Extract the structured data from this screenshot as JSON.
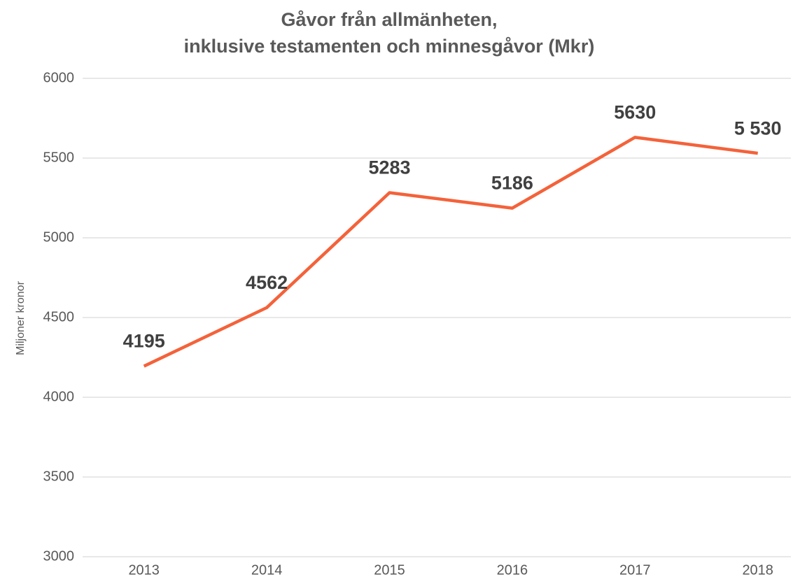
{
  "chart_data": {
    "type": "line",
    "title": [
      "Gåvor från allmänheten,",
      "inklusive testamenten och minnesgåvor (Mkr)"
    ],
    "y_label": "Miljoner kronor",
    "categories": [
      "2013",
      "2014",
      "2015",
      "2016",
      "2017",
      "2018"
    ],
    "values": [
      4195,
      4562,
      5283,
      5186,
      5630,
      5530
    ],
    "value_labels": [
      "4195",
      "4562",
      "5283",
      "5186",
      "5630",
      "5 530"
    ],
    "color": "#f4623a",
    "ylim": [
      3000,
      6000
    ],
    "yticks": [
      3000,
      3500,
      4000,
      4500,
      5000,
      5500,
      6000
    ],
    "grid": true
  }
}
